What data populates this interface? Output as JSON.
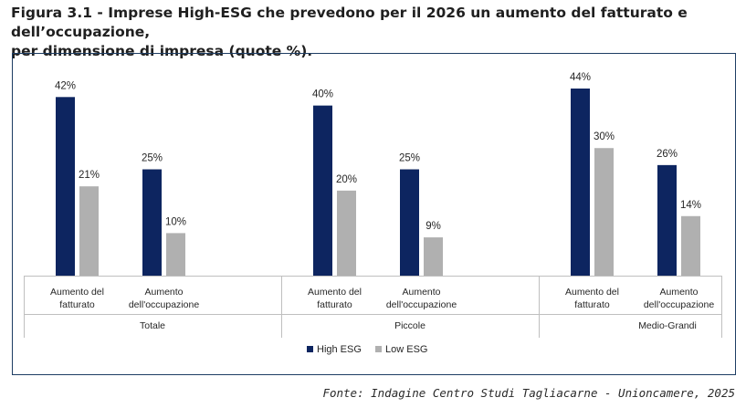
{
  "figure": {
    "title_line1": "Figura 3.1 - Imprese High-ESG che prevedono per il 2026 un aumento del fatturato e dell’occupazione,",
    "title_line2": "per dimensione di impresa (quote %).",
    "source": "Fonte: Indagine Centro Studi Tagliacarne - Unioncamere, 2025"
  },
  "colors": {
    "high": "#0d2560",
    "low": "#b0b0b0",
    "frame": "#1d3d63",
    "axis": "#bfbfbf"
  },
  "chart_data": {
    "type": "bar",
    "groups": [
      {
        "name": "Totale",
        "categories": [
          "Aumento del fatturato",
          "Aumento dell'occupazione"
        ],
        "labels": [
          [
            "Aumento del",
            "fatturato"
          ],
          [
            "Aumento",
            "dell'occupazione"
          ]
        ]
      },
      {
        "name": "Piccole",
        "categories": [
          "Aumento del fatturato",
          "Aumento dell'occupazione"
        ],
        "labels": [
          [
            "Aumento del",
            "fatturato"
          ],
          [
            "Aumento",
            "dell'occupazione"
          ]
        ]
      },
      {
        "name": "Medio-Grandi",
        "categories": [
          "Aumento del fatturato",
          "Aumento dell'occupazione"
        ],
        "labels": [
          [
            "Aumento del",
            "fatturato"
          ],
          [
            "Aumento",
            "dell'occupazione"
          ]
        ]
      }
    ],
    "series": [
      {
        "name": "High ESG",
        "values": [
          42,
          25,
          40,
          25,
          44,
          26
        ],
        "labels": [
          "42%",
          "25%",
          "40%",
          "25%",
          "44%",
          "26%"
        ]
      },
      {
        "name": "Low ESG",
        "values": [
          21,
          10,
          20,
          9,
          30,
          14
        ],
        "labels": [
          "21%",
          "10%",
          "20%",
          "9%",
          "30%",
          "14%"
        ]
      }
    ],
    "unit": "%",
    "ylim": [
      0,
      44
    ],
    "grid": false,
    "legend_position": "bottom"
  }
}
